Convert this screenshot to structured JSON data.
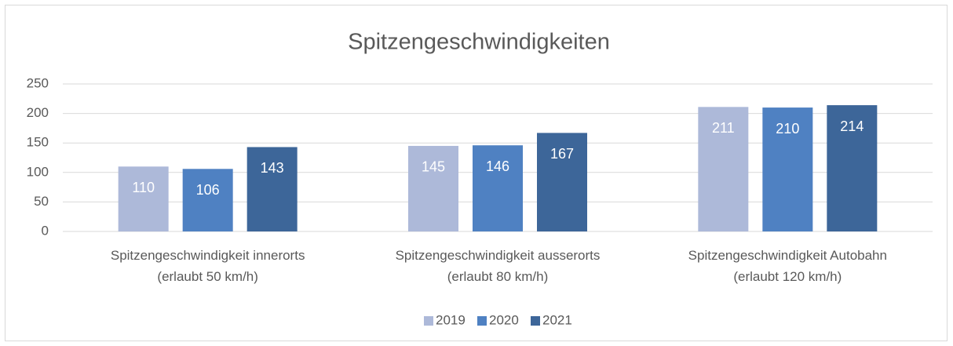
{
  "chart_data": {
    "type": "bar",
    "title": "Spitzengeschwindigkeiten",
    "categories": [
      "Spitzengeschwindigkeit innerorts\n(erlaubt 50 km/h)",
      "Spitzengeschwindigkeit ausserorts\n(erlaubt 80 km/h)",
      "Spitzengeschwindigkeit Autobahn\n(erlaubt 120 km/h)"
    ],
    "series": [
      {
        "name": "2019",
        "color": "#adb9d9",
        "values": [
          110,
          145,
          211
        ]
      },
      {
        "name": "2020",
        "color": "#4f81c2",
        "values": [
          106,
          146,
          210
        ]
      },
      {
        "name": "2021",
        "color": "#3d6699",
        "values": [
          143,
          167,
          214
        ]
      }
    ],
    "ylim": [
      0,
      250
    ],
    "yticks": [
      0,
      50,
      100,
      150,
      200,
      250
    ],
    "grid": true,
    "legend": "bottom"
  }
}
